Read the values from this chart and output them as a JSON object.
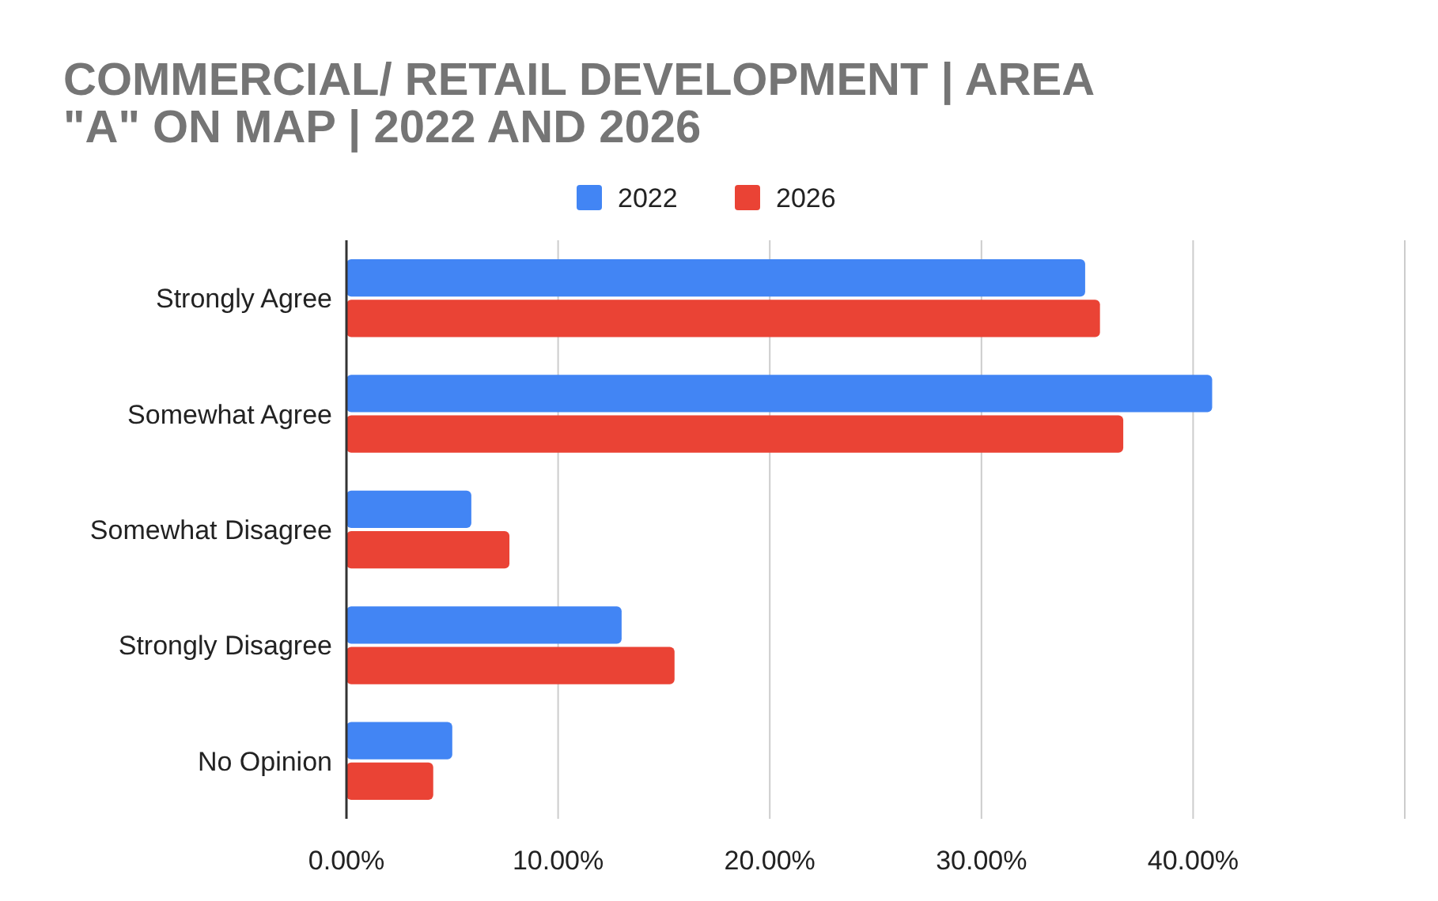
{
  "chart_data": {
    "type": "bar",
    "orientation": "horizontal",
    "title": "COMMERCIAL/ RETAIL DEVELOPMENT | AREA \"A\" ON MAP | 2022 AND 2026",
    "categories": [
      "Strongly Agree",
      "Somewhat Agree",
      "Somewhat Disagree",
      "Strongly Disagree",
      "No Opinion"
    ],
    "series": [
      {
        "name": "2022",
        "color": "#4285f4",
        "values": [
          34.9,
          40.9,
          5.9,
          13.0,
          5.0
        ]
      },
      {
        "name": "2026",
        "color": "#ea4335",
        "values": [
          35.6,
          36.7,
          7.7,
          15.5,
          4.1
        ]
      }
    ],
    "xlim": [
      0,
      50
    ],
    "xticks": [
      {
        "value": 0,
        "label": "0.00%"
      },
      {
        "value": 10,
        "label": "10.00%"
      },
      {
        "value": 20,
        "label": "20.00%"
      },
      {
        "value": 30,
        "label": "30.00%"
      },
      {
        "value": 40,
        "label": "40.00%"
      },
      {
        "value": 50,
        "label": null
      }
    ],
    "grid": "x",
    "legend": "top"
  }
}
